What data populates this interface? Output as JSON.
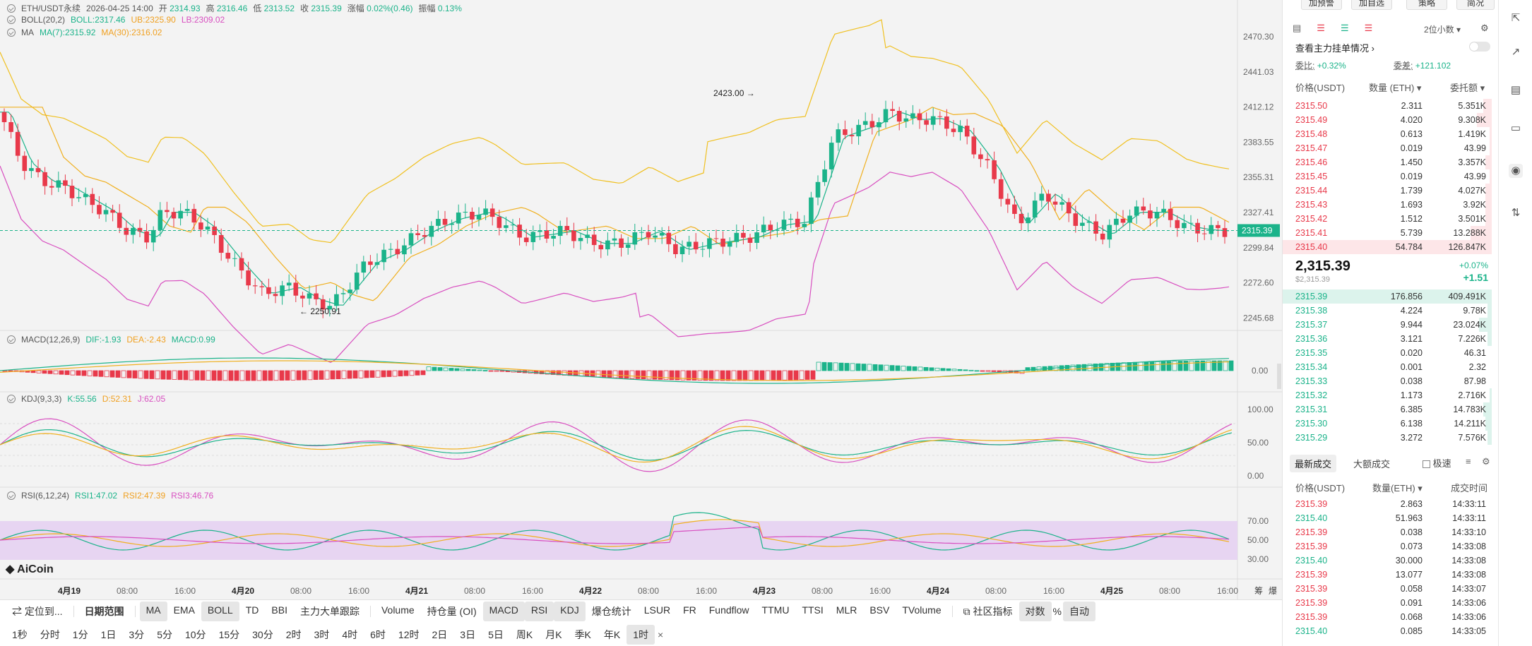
{
  "chart": {
    "symbol": "ETH/USDT永续",
    "datetime": "2026-04-25 14:00",
    "open_label": "开",
    "open": "2314.93",
    "high_label": "高",
    "high": "2316.46",
    "low_label": "低",
    "low": "2313.52",
    "close_label": "收",
    "close": "2315.39",
    "change_label": "涨幅",
    "change": "0.02%(0.46)",
    "amp_label": "振幅",
    "amp": "0.13%",
    "boll_name": "BOLL(20,2)",
    "boll_mid": "BOLL:2317.46",
    "boll_ub": "UB:2325.90",
    "boll_lb": "LB:2309.02",
    "ma_name": "MA",
    "ma7": "MA(7):2315.92",
    "ma30": "MA(30):2316.02",
    "macd_name": "MACD(12,26,9)",
    "macd_dif": "DIF:-1.93",
    "macd_dea": "DEA:-2.43",
    "macd_val": "MACD:0.99",
    "kdj_name": "KDJ(9,3,3)",
    "kdj_k": "K:55.56",
    "kdj_d": "D:52.31",
    "kdj_j": "J:62.05",
    "rsi_name": "RSI(6,12,24)",
    "rsi1": "RSI1:47.02",
    "rsi2": "RSI2:47.39",
    "rsi3": "RSI3:46.76",
    "price_axis": [
      "2470.30",
      "2441.03",
      "2412.12",
      "2383.55",
      "2355.31",
      "2327.41",
      "2299.84",
      "2272.60",
      "2245.68"
    ],
    "current_price_tag": "2315.39",
    "high_mark": "2423.00",
    "low_mark": "2250.91",
    "macd_axis": [
      "0.00"
    ],
    "kdj_axis": [
      "100.00",
      "50.00",
      "0.00"
    ],
    "rsi_axis": [
      "70.00",
      "50.00",
      "30.00"
    ],
    "time_axis": [
      "4月19",
      "08:00",
      "16:00",
      "4月20",
      "08:00",
      "16:00",
      "4月21",
      "08:00",
      "16:00",
      "4月22",
      "08:00",
      "16:00",
      "4月23",
      "08:00",
      "16:00",
      "4月24",
      "08:00",
      "16:00",
      "4月25",
      "08:00",
      "16:00"
    ],
    "corner_labels": [
      "筹",
      "爆"
    ],
    "watermark": "AiCoin",
    "colors": {
      "up": "#1bb38a",
      "down": "#e8394a",
      "ma7": "#1bb38a",
      "ma30": "#f0b020",
      "boll_band": "#d84fc0",
      "boll_up": "#f0c020",
      "rsi_band": "#e6d2f2"
    }
  },
  "toolbar1": {
    "locate": "定位到...",
    "date_range": "日期范围",
    "indicators": [
      "MA",
      "EMA",
      "BOLL",
      "TD",
      "BBI",
      "主力大单跟踪"
    ],
    "sub_indicators": [
      "Volume",
      "持仓量 (OI)",
      "MACD",
      "RSI",
      "KDJ",
      "爆仓统计",
      "LSUR",
      "FR",
      "Fundflow",
      "TTMU",
      "TTSI",
      "MLR",
      "BSV",
      "TVolume"
    ],
    "community": "社区指标",
    "log": "对数",
    "percent": "%",
    "auto": "自动"
  },
  "toolbar2": {
    "intervals": [
      "1秒",
      "分时",
      "1分",
      "1日",
      "3分",
      "5分",
      "10分",
      "15分",
      "30分",
      "2时",
      "3时",
      "4时",
      "6时",
      "12时",
      "2日",
      "3日",
      "5日",
      "周K",
      "月K",
      "季K",
      "年K",
      "1时"
    ],
    "close": "×"
  },
  "panel": {
    "top_buttons": [
      "加预警",
      "加自选",
      "策略",
      "简况"
    ],
    "decimals": "2位小数",
    "main_orders": "查看主力挂单情况",
    "weibi_label": "委比:",
    "weibi": "+0.32%",
    "weicha_label": "委差:",
    "weicha": "+121.102",
    "col_price": "价格(USDT)",
    "col_qty": "数量 (ETH)",
    "col_total": "委托额",
    "asks": [
      [
        "2315.50",
        "2.311",
        "5.351K"
      ],
      [
        "2315.49",
        "4.020",
        "9.308K"
      ],
      [
        "2315.48",
        "0.613",
        "1.419K"
      ],
      [
        "2315.47",
        "0.019",
        "43.99"
      ],
      [
        "2315.46",
        "1.450",
        "3.357K"
      ],
      [
        "2315.45",
        "0.019",
        "43.99"
      ],
      [
        "2315.44",
        "1.739",
        "4.027K"
      ],
      [
        "2315.43",
        "1.693",
        "3.92K"
      ],
      [
        "2315.42",
        "1.512",
        "3.501K"
      ],
      [
        "2315.41",
        "5.739",
        "13.288K"
      ],
      [
        "2315.40",
        "54.784",
        "126.847K"
      ]
    ],
    "ask_depth": [
      0.04,
      0.07,
      0.01,
      0.01,
      0.03,
      0.01,
      0.03,
      0.03,
      0.03,
      0.1,
      1.0
    ],
    "last_price": "2,315.39",
    "last_price_sub": "$2,315.39",
    "last_change_pct": "+0.07%",
    "last_change": "+1.51",
    "bids": [
      [
        "2315.39",
        "176.856",
        "409.491K"
      ],
      [
        "2315.38",
        "4.224",
        "9.78K"
      ],
      [
        "2315.37",
        "9.944",
        "23.024K"
      ],
      [
        "2315.36",
        "3.121",
        "7.226K"
      ],
      [
        "2315.35",
        "0.020",
        "46.31"
      ],
      [
        "2315.34",
        "0.001",
        "2.32"
      ],
      [
        "2315.33",
        "0.038",
        "87.98"
      ],
      [
        "2315.32",
        "1.173",
        "2.716K"
      ],
      [
        "2315.31",
        "6.385",
        "14.783K"
      ],
      [
        "2315.30",
        "6.138",
        "14.211K"
      ],
      [
        "2315.29",
        "3.272",
        "7.576K"
      ]
    ],
    "bid_depth": [
      1.0,
      0.02,
      0.06,
      0.02,
      0.0,
      0.0,
      0.0,
      0.01,
      0.04,
      0.03,
      0.02
    ],
    "tab_latest": "最新成交",
    "tab_large": "大额成交",
    "speed_label": "极速",
    "trade_cols": [
      "价格(USDT)",
      "数量(ETH)",
      "成交时间"
    ],
    "trades": [
      [
        "2315.39",
        "2.863",
        "14:33:11",
        "down"
      ],
      [
        "2315.40",
        "51.963",
        "14:33:11",
        "up"
      ],
      [
        "2315.39",
        "0.038",
        "14:33:10",
        "down"
      ],
      [
        "2315.39",
        "0.073",
        "14:33:08",
        "down"
      ],
      [
        "2315.40",
        "30.000",
        "14:33:08",
        "up"
      ],
      [
        "2315.39",
        "13.077",
        "14:33:08",
        "down"
      ],
      [
        "2315.39",
        "0.058",
        "14:33:07",
        "down"
      ],
      [
        "2315.39",
        "0.091",
        "14:33:06",
        "down"
      ],
      [
        "2315.39",
        "0.068",
        "14:33:06",
        "down"
      ],
      [
        "2315.40",
        "0.085",
        "14:33:05",
        "up"
      ]
    ]
  }
}
